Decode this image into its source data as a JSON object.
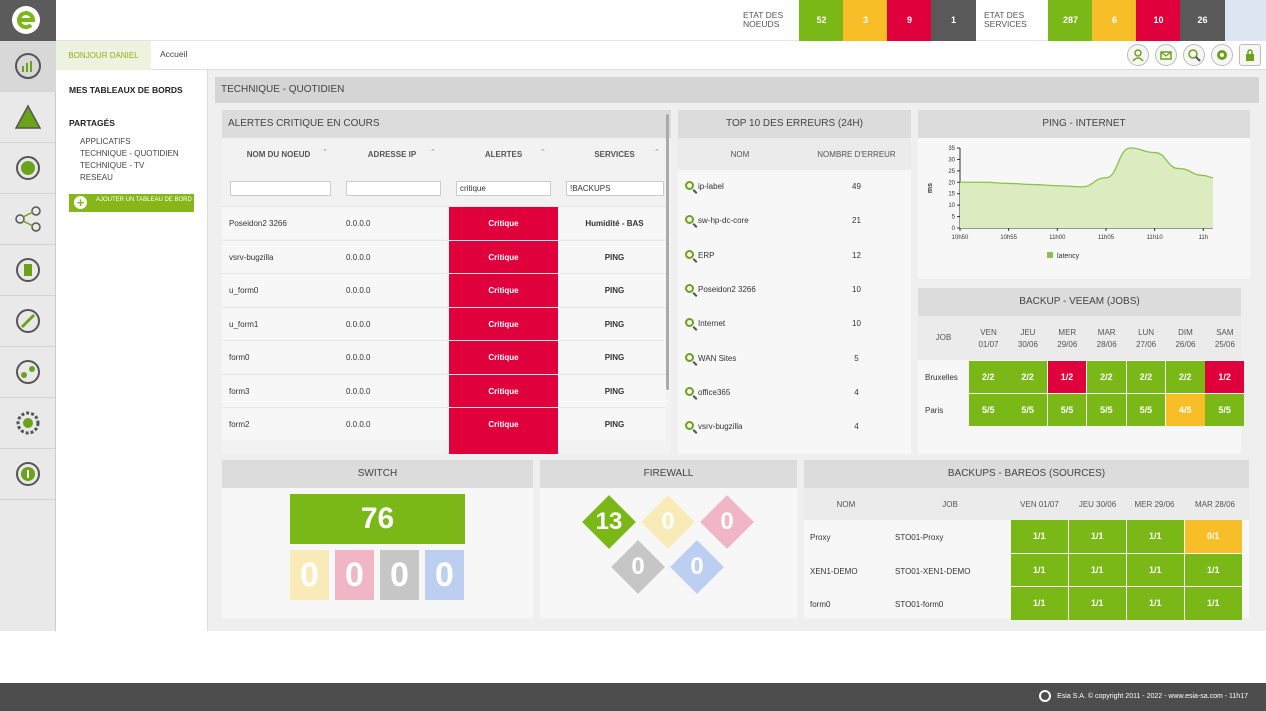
{
  "header": {
    "nodes_label": "ETAT DES NOEUDS",
    "nodes": [
      {
        "v": "52",
        "c": "#7ab817"
      },
      {
        "v": "3",
        "c": "#f7be28"
      },
      {
        "v": "9",
        "c": "#e0003c"
      },
      {
        "v": "1",
        "c": "#595959"
      }
    ],
    "services_label": "ETAT DES SERVICES",
    "services": [
      {
        "v": "287",
        "c": "#7ab817"
      },
      {
        "v": "6",
        "c": "#f7be28"
      },
      {
        "v": "10",
        "c": "#e0003c"
      },
      {
        "v": "26",
        "c": "#595959"
      }
    ]
  },
  "subbar": {
    "greeting": "BONJOUR DANIEL",
    "breadcrumb": "Accueil"
  },
  "menu": {
    "my_dashboards": "MES TABLEAUX DE BORDS",
    "shared": "PARTAGÉS",
    "links": [
      "APPLICATIFS",
      "TECHNIQUE - QUOTIDIEN",
      "TECHNIQUE - TV",
      "RESEAU"
    ],
    "add_button": "AJOUTER UN TABLEAU DE BORD"
  },
  "page_title": "TECHNIQUE - QUOTIDIEN",
  "alerts": {
    "title": "ALERTES CRITIQUE EN COURS",
    "columns": [
      "NOM DU NOEUD",
      "ADRESSE IP",
      "ALERTES",
      "SERVICES"
    ],
    "filters": [
      "",
      "",
      "critique",
      "!BACKUPS"
    ],
    "rows": [
      {
        "node": "Poseidon2 3266",
        "ip": "0.0.0.0",
        "alert": "Critique",
        "service": "Humidité - BAS"
      },
      {
        "node": "vsrv-bugzilla",
        "ip": "0.0.0.0",
        "alert": "Critique",
        "service": "PING"
      },
      {
        "node": "u_form0",
        "ip": "0.0.0.0",
        "alert": "Critique",
        "service": "PING"
      },
      {
        "node": "u_form1",
        "ip": "0.0.0.0",
        "alert": "Critique",
        "service": "PING"
      },
      {
        "node": "form0",
        "ip": "0.0.0.0",
        "alert": "Critique",
        "service": "PING"
      },
      {
        "node": "form3",
        "ip": "0.0.0.0",
        "alert": "Critique",
        "service": "PING"
      },
      {
        "node": "form2",
        "ip": "0.0.0.0",
        "alert": "Critique",
        "service": "PING"
      }
    ]
  },
  "top10": {
    "title": "TOP 10 DES ERREURS (24H)",
    "columns": [
      "NOM",
      "NOMBRE D'ERREUR"
    ],
    "rows": [
      {
        "name": "ip-label",
        "count": "49"
      },
      {
        "name": "sw-hp-dc-core",
        "count": "21"
      },
      {
        "name": "ERP",
        "count": "12"
      },
      {
        "name": "Poseidon2 3266",
        "count": "10"
      },
      {
        "name": "Internet",
        "count": "10"
      },
      {
        "name": "WAN Sites",
        "count": "5"
      },
      {
        "name": "office365",
        "count": "4"
      },
      {
        "name": "vsrv-bugzilla",
        "count": "4"
      }
    ]
  },
  "ping": {
    "title": "PING - INTERNET"
  },
  "chart_data": {
    "type": "area",
    "ylabel": "ms",
    "ylim": [
      0,
      35
    ],
    "yticks": [
      "0",
      "5",
      "10",
      "15",
      "20",
      "25",
      "30",
      "35"
    ],
    "xticks": [
      "10h50",
      "10h55",
      "11h00",
      "11h05",
      "11h10",
      "11h"
    ],
    "series": [
      {
        "name": "latency",
        "color": "#8bc34a",
        "x": [
          0,
          0.5,
          1,
          1.5,
          2,
          2.5,
          3,
          3.5,
          4,
          4.5,
          5,
          5.2
        ],
        "values": [
          20,
          20,
          19.5,
          19,
          18.5,
          18,
          22,
          35,
          33,
          26,
          23,
          22
        ]
      }
    ],
    "legend": "bottom"
  },
  "veeam": {
    "title": "BACKUP - VEEAM (JOBS)",
    "job_label": "JOB",
    "days": [
      [
        "VEN",
        "01/07"
      ],
      [
        "JEU",
        "30/06"
      ],
      [
        "MER",
        "29/06"
      ],
      [
        "MAR",
        "28/06"
      ],
      [
        "LUN",
        "27/06"
      ],
      [
        "DIM",
        "26/06"
      ],
      [
        "SAM",
        "25/06"
      ]
    ],
    "rows": [
      {
        "name": "Bruxelles",
        "cells": [
          {
            "v": "2/2",
            "c": "#7ab817"
          },
          {
            "v": "2/2",
            "c": "#7ab817"
          },
          {
            "v": "1/2",
            "c": "#e0003c"
          },
          {
            "v": "2/2",
            "c": "#7ab817"
          },
          {
            "v": "2/2",
            "c": "#7ab817"
          },
          {
            "v": "2/2",
            "c": "#7ab817"
          },
          {
            "v": "1/2",
            "c": "#e0003c"
          }
        ]
      },
      {
        "name": "Paris",
        "cells": [
          {
            "v": "5/5",
            "c": "#7ab817"
          },
          {
            "v": "5/5",
            "c": "#7ab817"
          },
          {
            "v": "5/5",
            "c": "#7ab817"
          },
          {
            "v": "5/5",
            "c": "#7ab817"
          },
          {
            "v": "5/5",
            "c": "#7ab817"
          },
          {
            "v": "4/5",
            "c": "#f7be28"
          },
          {
            "v": "5/5",
            "c": "#7ab817"
          }
        ]
      }
    ]
  },
  "switch": {
    "title": "SWITCH",
    "ok": "76",
    "states": [
      {
        "v": "0",
        "c": "#f9ebb8"
      },
      {
        "v": "0",
        "c": "#f0b6c6"
      },
      {
        "v": "0",
        "c": "#c6c6c6"
      },
      {
        "v": "0",
        "c": "#bccff0"
      }
    ]
  },
  "firewall": {
    "title": "FIREWALL",
    "states": [
      {
        "v": "13",
        "c": "#7ab817"
      },
      {
        "v": "0",
        "c": "#f9ebb8"
      },
      {
        "v": "0",
        "c": "#f0b6c6"
      },
      {
        "v": "0",
        "c": "#c6c6c6"
      },
      {
        "v": "0",
        "c": "#bccff0"
      }
    ]
  },
  "bareos": {
    "title": "BACKUPS - BAREOS (SOURCES)",
    "columns": [
      "NOM",
      "JOB",
      "VEN 01/07",
      "JEU 30/06",
      "MER 29/06",
      "MAR 28/06"
    ],
    "rows": [
      {
        "name": "Proxy",
        "job": "STO01-Proxy",
        "cells": [
          {
            "v": "1/1",
            "c": "#7ab817"
          },
          {
            "v": "1/1",
            "c": "#7ab817"
          },
          {
            "v": "1/1",
            "c": "#7ab817"
          },
          {
            "v": "0/1",
            "c": "#f7be28"
          }
        ]
      },
      {
        "name": "XEN1-DEMO",
        "job": "STO01-XEN1-DEMO",
        "cells": [
          {
            "v": "1/1",
            "c": "#7ab817"
          },
          {
            "v": "1/1",
            "c": "#7ab817"
          },
          {
            "v": "1/1",
            "c": "#7ab817"
          },
          {
            "v": "1/1",
            "c": "#7ab817"
          }
        ]
      },
      {
        "name": "form0",
        "job": "STO01-form0",
        "cells": [
          {
            "v": "1/1",
            "c": "#7ab817"
          },
          {
            "v": "1/1",
            "c": "#7ab817"
          },
          {
            "v": "1/1",
            "c": "#7ab817"
          },
          {
            "v": "1/1",
            "c": "#7ab817"
          }
        ]
      }
    ]
  },
  "footer": {
    "text": "Esia S.A. © copyright 2011 - 2022 - www.esia-sa.com - 11h17"
  }
}
